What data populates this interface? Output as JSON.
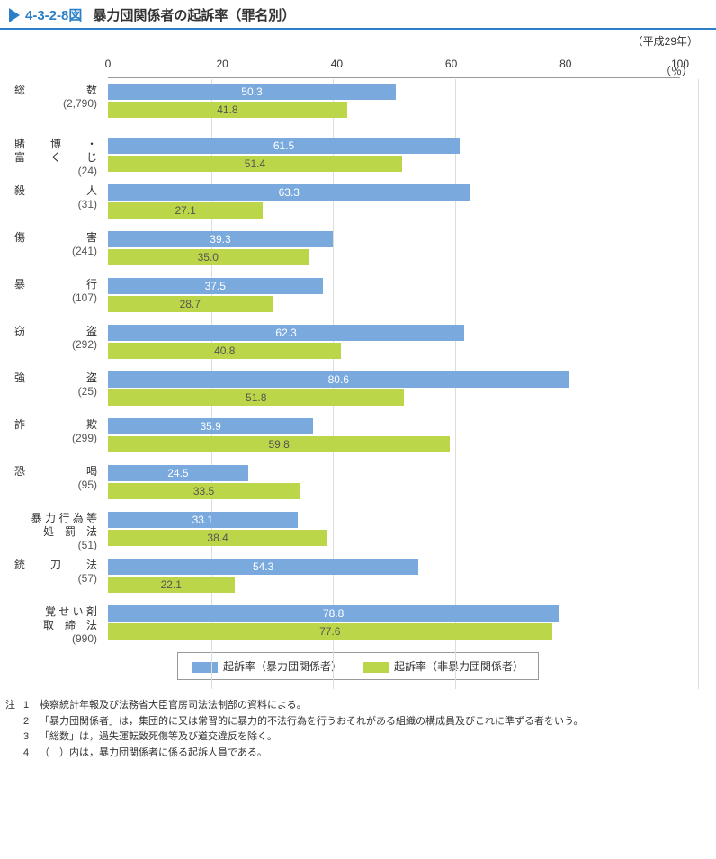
{
  "header": {
    "fignum": "4-3-2-8図",
    "title": "暴力団関係者の起訴率（罪名別）"
  },
  "year": "（平成29年）",
  "unit": "（％）",
  "axis": {
    "min": 0,
    "max": 100,
    "ticks": [
      0,
      20,
      40,
      60,
      80,
      100
    ]
  },
  "colors": {
    "series1": "#7aa9de",
    "series2": "#bcd64a",
    "grid": "#dddddd",
    "border": "#999999",
    "accent": "#2a7fc7"
  },
  "legend": {
    "s1": "起訴率（暴力団関係者）",
    "s2": "起訴率（非暴力団関係者）"
  },
  "rows": [
    {
      "l1": "総",
      "l2": "数",
      "count": "(2,790)",
      "v1": 50.3,
      "v2": 41.8,
      "wide": true
    },
    {
      "l1": "賭",
      "lm": "博",
      "l2": "・",
      "line2a": "富",
      "line2m": "く",
      "line2b": "じ",
      "count": "(24)",
      "v1": 61.5,
      "v2": 51.4
    },
    {
      "l1": "殺",
      "l2": "人",
      "count": "(31)",
      "v1": 63.3,
      "v2": 27.1
    },
    {
      "l1": "傷",
      "l2": "害",
      "count": "(241)",
      "v1": 39.3,
      "v2": 35.0
    },
    {
      "l1": "暴",
      "l2": "行",
      "count": "(107)",
      "v1": 37.5,
      "v2": 28.7
    },
    {
      "l1": "窃",
      "l2": "盗",
      "count": "(292)",
      "v1": 62.3,
      "v2": 40.8
    },
    {
      "l1": "強",
      "l2": "盗",
      "count": "(25)",
      "v1": 80.6,
      "v2": 51.8
    },
    {
      "l1": "詐",
      "l2": "欺",
      "count": "(299)",
      "v1": 35.9,
      "v2": 59.8
    },
    {
      "l1": "恐",
      "l2": "喝",
      "count": "(95)",
      "v1": 24.5,
      "v2": 33.5
    },
    {
      "full1": "暴 力 行 為 等",
      "full2": "処　罰　法",
      "count": "(51)",
      "v1": 33.1,
      "v2": 38.4
    },
    {
      "l1": "銃",
      "lm": "刀",
      "l2": "法",
      "count": "(57)",
      "v1": 54.3,
      "v2": 22.1
    },
    {
      "full1": "覚 せ い 剤",
      "full2": "取　締　法",
      "count": "(990)",
      "v1": 78.8,
      "v2": 77.6
    }
  ],
  "notes": {
    "lead": "注",
    "items": [
      "検察統計年報及び法務省大臣官房司法法制部の資料による。",
      "「暴力団関係者」は，集団的に又は常習的に暴力的不法行為を行うおそれがある組織の構成員及びこれに準ずる者をいう。",
      "「総数」は，過失運転致死傷等及び道交違反を除く。",
      "（　）内は，暴力団関係者に係る起訴人員である。"
    ]
  }
}
